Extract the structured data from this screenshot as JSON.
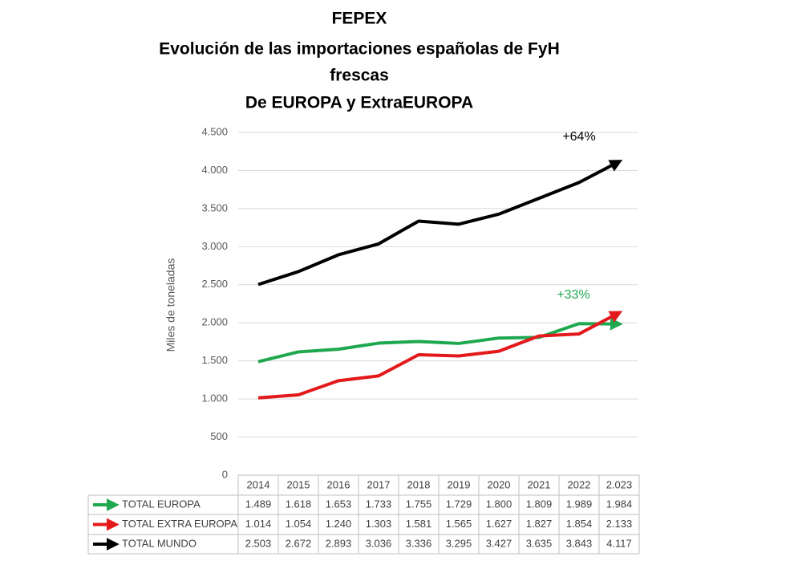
{
  "chart_data": {
    "type": "line",
    "title": [
      "FEPEX",
      "Evolución de las importaciones españolas de FyH",
      "frescas",
      "De EUROPA y ExtraEUROPA"
    ],
    "y_label": "Miles de toneladas",
    "categories": [
      "2014",
      "2015",
      "2016",
      "2017",
      "2018",
      "2019",
      "2020",
      "2021",
      "2022",
      "2.023"
    ],
    "series": [
      {
        "name": "TOTAL EUROPA",
        "color": "#1fa84f",
        "values": [
          1489,
          1618,
          1653,
          1733,
          1755,
          1729,
          1800,
          1809,
          1989,
          1984
        ],
        "value_labels": [
          "1.489",
          "1.618",
          "1.653",
          "1.733",
          "1.755",
          "1.729",
          "1.800",
          "1.809",
          "1.989",
          "1.984"
        ]
      },
      {
        "name": "TOTAL EXTRA EUROPA",
        "color": "#e3191c",
        "values": [
          1014,
          1054,
          1240,
          1303,
          1581,
          1565,
          1627,
          1827,
          1854,
          2133
        ],
        "value_labels": [
          "1.014",
          "1.054",
          "1.240",
          "1.303",
          "1.581",
          "1.565",
          "1.627",
          "1.827",
          "1.854",
          "2.133"
        ]
      },
      {
        "name": "TOTAL MUNDO",
        "color": "#000000",
        "values": [
          2503,
          2672,
          2893,
          3036,
          3336,
          3295,
          3427,
          3635,
          3843,
          4117
        ],
        "value_labels": [
          "2.503",
          "2.672",
          "2.893",
          "3.036",
          "3.336",
          "3.295",
          "3.427",
          "3.635",
          "3.843",
          "4.117"
        ]
      }
    ],
    "annotations": [
      {
        "text": "+64%",
        "color": "#000000"
      },
      {
        "text": "+33%",
        "color": "#1fa84f"
      }
    ],
    "ylim": [
      0,
      4500
    ],
    "yticks": [
      0,
      500,
      {
        "value": 1000,
        "label": "1.000"
      },
      {
        "value": 1500,
        "label": "1.500"
      },
      {
        "value": 2000,
        "label": "2.000"
      },
      {
        "value": 2500,
        "label": "2.500"
      },
      {
        "value": 3000,
        "label": "3.000"
      },
      {
        "value": 3500,
        "label": "3.500"
      },
      {
        "value": 4000,
        "label": "4.000"
      },
      {
        "value": 4500,
        "label": "4.500"
      }
    ],
    "grid": true
  }
}
